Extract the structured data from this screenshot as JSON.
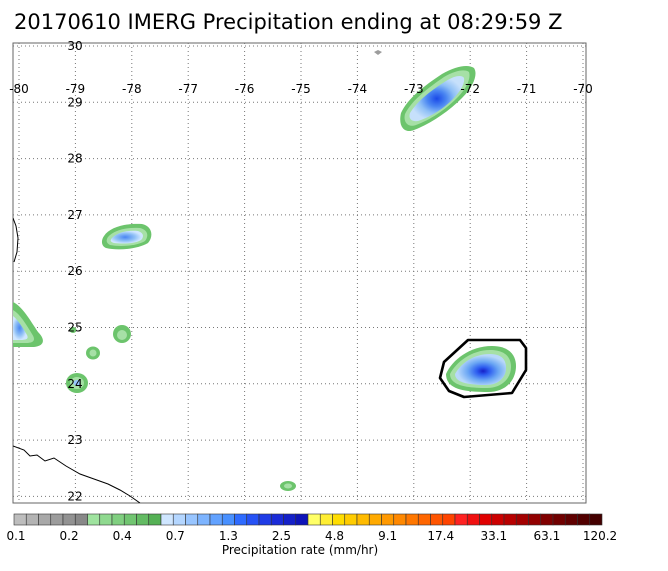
{
  "title": "20170610 IMERG Precipitation ending at 08:29:59 Z",
  "map": {
    "lon_labels": [
      "-80",
      "-79",
      "-78",
      "-77",
      "-76",
      "-75",
      "-74",
      "-73",
      "-72",
      "-71",
      "-70"
    ],
    "lat_labels": [
      "30",
      "29",
      "28",
      "27",
      "26",
      "25",
      "24",
      "23",
      "22"
    ],
    "grid": "dotted",
    "highlight_region": "outlined precipitation cell near 24N, 72W"
  },
  "colorbar": {
    "title": "Precipitation rate (mm/hr)",
    "tick_labels": [
      "0.1",
      "0.2",
      "0.4",
      "0.7",
      "1.3",
      "2.5",
      "4.8",
      "9.1",
      "17.4",
      "33.1",
      "63.1",
      "120.2"
    ],
    "colors": [
      "#bdbdbd",
      "#b3b3b3",
      "#a8a8a8",
      "#9c9c9c",
      "#929292",
      "#888888",
      "#9fe39f",
      "#8fd98f",
      "#80cf80",
      "#71c571",
      "#63bb63",
      "#55b155",
      "#cfe6ff",
      "#b4d6ff",
      "#98c5ff",
      "#7db4ff",
      "#62a2ff",
      "#4890ff",
      "#2e6bff",
      "#2652f5",
      "#1f3ce6",
      "#1a2bd8",
      "#1420c8",
      "#0e14b8",
      "#ffff66",
      "#ffee33",
      "#ffdd00",
      "#ffcc00",
      "#ffbb00",
      "#ffaa00",
      "#ff9900",
      "#ff8800",
      "#ff7700",
      "#ff6600",
      "#ff5500",
      "#ff4400",
      "#ff2222",
      "#f01010",
      "#e00000",
      "#cc0000",
      "#b80000",
      "#a40000",
      "#920000",
      "#800000",
      "#700000",
      "#600000",
      "#520000",
      "#440000"
    ]
  }
}
